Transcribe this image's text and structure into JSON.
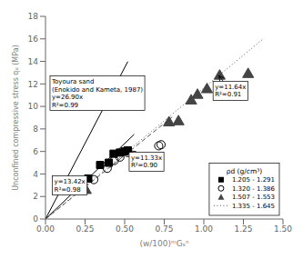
{
  "chart_data": {
    "type": "scatter",
    "xlabel": "(w/100)ᵐGₛⁿ",
    "ylabel": "Unconfined compressive stress qᵤ (MPa)",
    "xlim": [
      0.0,
      1.5
    ],
    "ylim": [
      0,
      18
    ],
    "xticks": [
      {
        "value": 0,
        "label": "0.00"
      },
      0.25,
      {
        "value": 0.5,
        "label": "0.50"
      },
      0.75,
      {
        "value": 1,
        "label": "1.00"
      },
      1.25,
      {
        "value": 1.5,
        "label": "1.50"
      }
    ],
    "yticks": [
      0,
      2,
      4,
      6,
      8,
      10,
      12,
      14,
      16,
      18
    ],
    "grid": false,
    "legend": "lower right",
    "legend_title": "ρd (g/cm³)",
    "series": [
      {
        "name": "1.205 - 1.291",
        "type": "scatter",
        "marker": "square",
        "color": "#000000",
        "x": [
          0.27,
          0.345,
          0.4,
          0.43,
          0.47,
          0.5,
          0.52
        ],
        "values": [
          3.6,
          4.8,
          5.0,
          5.8,
          5.9,
          6.0,
          6.1
        ]
      },
      {
        "name": "1.320 - 1.386",
        "type": "scatter",
        "marker": "circle-open",
        "color": "#000000",
        "x": [
          0.305,
          0.39,
          0.435,
          0.47,
          0.52,
          0.715,
          0.73
        ],
        "values": [
          3.5,
          4.5,
          5.2,
          5.5,
          5.9,
          6.5,
          6.6
        ]
      },
      {
        "name": "1.507 - 1.553",
        "type": "scatter",
        "marker": "triangle",
        "color": "#444444",
        "x": [
          0.255,
          0.78,
          0.84,
          0.92,
          0.96,
          1.02,
          1.1,
          1.28
        ],
        "values": [
          2.55,
          8.55,
          8.65,
          10.5,
          11.0,
          11.5,
          12.7,
          12.85
        ]
      },
      {
        "name": "1.335 - 1.645",
        "type": "line",
        "line_style": "dotted",
        "color": "#555555",
        "x": [
          0,
          1.38
        ],
        "values": [
          0,
          16.0632
        ]
      },
      {
        "type": "line",
        "line_style": "solid",
        "color": "#000000",
        "x": [
          0,
          0.52
        ],
        "values": [
          0,
          13.988
        ]
      },
      {
        "type": "line",
        "line_style": "solid",
        "color": "#000000",
        "x": [
          0,
          0.56
        ],
        "values": [
          0,
          7.5152
        ]
      },
      {
        "type": "line",
        "line_style": "dashed",
        "color": "#555555",
        "x": [
          0,
          0.8
        ],
        "values": [
          0,
          9.064
        ]
      }
    ],
    "annotations": [
      {
        "text": [
          "Toyoura sand",
          "(Enokido and Kameta, 1987)",
          "y=26.90x",
          "R²=0.99"
        ],
        "xy": [
          0.355,
          9.55
        ],
        "xytext": [
          0.04,
          9.8
        ]
      },
      {
        "text": [
          "y=13.42x",
          "R²=0.98"
        ],
        "xy": [
          0.275,
          3.62
        ],
        "xytext": [
          0.055,
          2.3
        ]
      },
      {
        "text": [
          "y=11.33x",
          "R²=0.90"
        ],
        "xy": [
          0.535,
          6.06
        ],
        "xytext": [
          0.54,
          4.4
        ]
      },
      {
        "text": [
          "y=11.64x",
          "R²=0.91"
        ],
        "xy": [
          1.095,
          12.74
        ],
        "xytext": [
          1.07,
          10.7
        ]
      }
    ]
  }
}
